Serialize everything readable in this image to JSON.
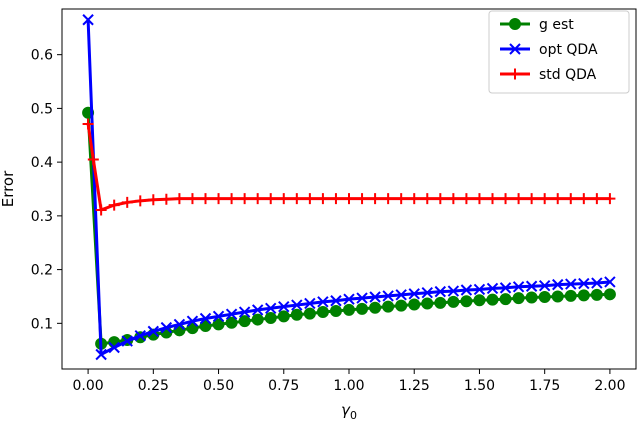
{
  "chart_data": {
    "type": "line",
    "title": "",
    "xlabel": "γ",
    "xlabel_subscript": "0",
    "ylabel": "Error",
    "xlim": [
      -0.1,
      2.1
    ],
    "ylim": [
      0.015,
      0.685
    ],
    "xticks": [
      "0.00",
      "0.25",
      "0.50",
      "0.75",
      "1.00",
      "1.25",
      "1.50",
      "1.75",
      "2.00"
    ],
    "yticks": [
      "0.1",
      "0.2",
      "0.3",
      "0.4",
      "0.5",
      "0.6"
    ],
    "grid": false,
    "legend_position": "top-right",
    "series": [
      {
        "name": "g est",
        "color": "#008000",
        "marker": "circle",
        "x": [
          0.0,
          0.05,
          0.1,
          0.15,
          0.2,
          0.25,
          0.3,
          0.35,
          0.4,
          0.45,
          0.5,
          0.55,
          0.6,
          0.65,
          0.7,
          0.75,
          0.8,
          0.85,
          0.9,
          0.95,
          1.0,
          1.05,
          1.1,
          1.15,
          1.2,
          1.25,
          1.3,
          1.35,
          1.4,
          1.45,
          1.5,
          1.55,
          1.6,
          1.65,
          1.7,
          1.75,
          1.8,
          1.85,
          1.9,
          1.95,
          2.0
        ],
        "y": [
          0.492,
          0.062,
          0.065,
          0.069,
          0.074,
          0.079,
          0.083,
          0.087,
          0.091,
          0.095,
          0.098,
          0.101,
          0.104,
          0.107,
          0.11,
          0.113,
          0.116,
          0.118,
          0.121,
          0.123,
          0.125,
          0.127,
          0.129,
          0.131,
          0.133,
          0.135,
          0.137,
          0.138,
          0.14,
          0.141,
          0.143,
          0.144,
          0.145,
          0.147,
          0.148,
          0.149,
          0.15,
          0.151,
          0.152,
          0.153,
          0.154
        ]
      },
      {
        "name": "opt QDA",
        "color": "#0000ff",
        "marker": "x",
        "x": [
          0.0,
          0.05,
          0.1,
          0.15,
          0.2,
          0.25,
          0.3,
          0.35,
          0.4,
          0.45,
          0.5,
          0.55,
          0.6,
          0.65,
          0.7,
          0.75,
          0.8,
          0.85,
          0.9,
          0.95,
          1.0,
          1.05,
          1.1,
          1.15,
          1.2,
          1.25,
          1.3,
          1.35,
          1.4,
          1.45,
          1.5,
          1.55,
          1.6,
          1.65,
          1.7,
          1.75,
          1.8,
          1.85,
          1.9,
          1.95,
          2.0
        ],
        "y": [
          0.665,
          0.042,
          0.055,
          0.067,
          0.077,
          0.085,
          0.092,
          0.098,
          0.104,
          0.109,
          0.113,
          0.117,
          0.121,
          0.125,
          0.128,
          0.131,
          0.134,
          0.137,
          0.14,
          0.142,
          0.145,
          0.147,
          0.149,
          0.151,
          0.153,
          0.155,
          0.157,
          0.159,
          0.16,
          0.162,
          0.163,
          0.165,
          0.166,
          0.168,
          0.169,
          0.17,
          0.172,
          0.173,
          0.174,
          0.175,
          0.177
        ]
      },
      {
        "name": "std QDA",
        "color": "#ff0000",
        "marker": "plus",
        "x": [
          0.0,
          0.02,
          0.05,
          0.1,
          0.15,
          0.2,
          0.25,
          0.3,
          0.35,
          0.4,
          0.45,
          0.5,
          0.55,
          0.6,
          0.65,
          0.7,
          0.75,
          0.8,
          0.85,
          0.9,
          0.95,
          1.0,
          1.05,
          1.1,
          1.15,
          1.2,
          1.25,
          1.3,
          1.35,
          1.4,
          1.45,
          1.5,
          1.55,
          1.6,
          1.65,
          1.7,
          1.75,
          1.8,
          1.85,
          1.9,
          1.95,
          2.0
        ],
        "y": [
          0.471,
          0.405,
          0.311,
          0.32,
          0.325,
          0.328,
          0.33,
          0.331,
          0.332,
          0.332,
          0.332,
          0.332,
          0.332,
          0.332,
          0.332,
          0.332,
          0.332,
          0.332,
          0.332,
          0.332,
          0.332,
          0.332,
          0.332,
          0.332,
          0.332,
          0.332,
          0.332,
          0.332,
          0.332,
          0.332,
          0.332,
          0.332,
          0.332,
          0.332,
          0.332,
          0.332,
          0.332,
          0.332,
          0.332,
          0.332,
          0.332,
          0.332
        ]
      }
    ]
  }
}
